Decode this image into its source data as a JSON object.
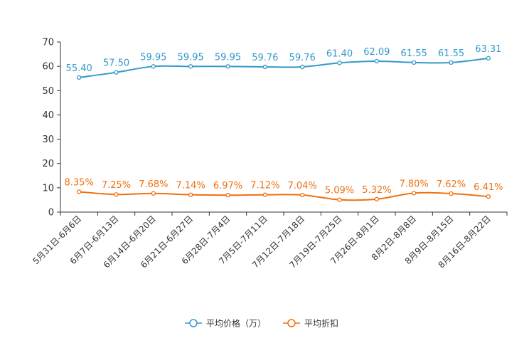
{
  "chart_data": {
    "type": "line",
    "title": "",
    "xlabel": "",
    "ylabel": "",
    "ylim": [
      0,
      70
    ],
    "yticks": [
      0,
      10,
      20,
      30,
      40,
      50,
      60,
      70
    ],
    "grid": false,
    "legend_position": "bottom-center",
    "categories": [
      "5月31日-6月6日",
      "6月7日-6月13日",
      "6月14日-6月20日",
      "6月21日-6月27日",
      "6月28日-7月4日",
      "7月5日-7月11日",
      "7月12日-7月18日",
      "7月19日-7月25日",
      "7月26日-8月1日",
      "8月2日-8月8日",
      "8月9日-8月15日",
      "8月16日-8月22日"
    ],
    "series": [
      {
        "name": "平均价格（万）",
        "color": "#3399cc",
        "values": [
          55.4,
          57.5,
          59.95,
          59.95,
          59.95,
          59.76,
          59.76,
          61.4,
          62.09,
          61.55,
          61.55,
          63.31
        ],
        "labels": [
          "55.40",
          "57.50",
          "59.95",
          "59.95",
          "59.95",
          "59.76",
          "59.76",
          "61.40",
          "62.09",
          "61.55",
          "61.55",
          "63.31"
        ]
      },
      {
        "name": "平均折扣",
        "color": "#f07010",
        "values": [
          8.35,
          7.25,
          7.68,
          7.14,
          6.97,
          7.12,
          7.04,
          5.09,
          5.32,
          7.8,
          7.62,
          6.41
        ],
        "labels": [
          "8.35%",
          "7.25%",
          "7.68%",
          "7.14%",
          "6.97%",
          "7.12%",
          "7.04%",
          "5.09%",
          "5.32%",
          "7.80%",
          "7.62%",
          "6.41%"
        ]
      }
    ]
  }
}
